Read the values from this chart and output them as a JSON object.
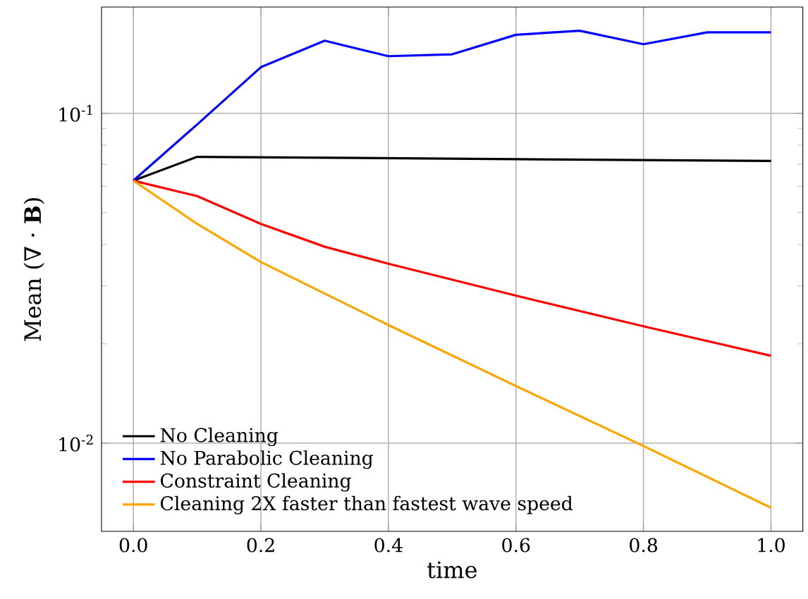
{
  "chart_data": {
    "type": "line",
    "xlabel": "time",
    "ylabel": "Mean (∇ · **B**)",
    "log": "y",
    "grid": true,
    "legend": "bottom left",
    "marker": "none",
    "line_style": "solid",
    "xlim": [
      -0.05,
      1.05
    ],
    "ylim": [
      0.0054,
      0.21
    ],
    "xticks": [
      {
        "value": 0,
        "label": "0.0"
      },
      {
        "value": 0.2,
        "label": "0.2"
      },
      {
        "value": 0.4,
        "label": "0.4"
      },
      {
        "value": 0.6,
        "label": "0.6"
      },
      {
        "value": 0.8,
        "label": "0.8"
      },
      {
        "value": 1,
        "label": "1.0"
      }
    ],
    "yticks": [
      {
        "value": 0.01,
        "label": "10$^{-2}$"
      },
      {
        "value": 0.1,
        "label": "10$^{-1}$"
      }
    ],
    "series": [
      {
        "name": "No Cleaning",
        "color": "#000000",
        "x": [
          0,
          0.1,
          1.0
        ],
        "values": [
          0.0625,
          0.0738,
          0.0717
        ]
      },
      {
        "name": "No Parabolic Cleaning",
        "color": "#0000ff",
        "x": [
          0,
          0.1,
          0.2,
          0.3,
          0.4,
          0.5,
          0.6,
          0.7,
          0.8,
          0.9,
          1.0
        ],
        "values": [
          0.0625,
          0.0925,
          0.138,
          0.166,
          0.149,
          0.151,
          0.173,
          0.178,
          0.162,
          0.176,
          0.176
        ]
      },
      {
        "name": "Constraint Cleaning",
        "color": "#ff0000",
        "x": [
          0,
          0.1,
          0.2,
          0.3,
          0.4,
          0.6,
          0.8,
          1.0
        ],
        "values": [
          0.0625,
          0.0561,
          0.0462,
          0.0394,
          0.035,
          0.028,
          0.0226,
          0.0184
        ]
      },
      {
        "name": "Cleaning 2X faster than fastest wave speed",
        "color": "#ffa500",
        "x": [
          0,
          0.1,
          0.2,
          0.4,
          0.6,
          0.8,
          1.0
        ],
        "values": [
          0.0625,
          0.0462,
          0.0354,
          0.0228,
          0.0149,
          0.0098,
          0.00637
        ]
      }
    ]
  }
}
